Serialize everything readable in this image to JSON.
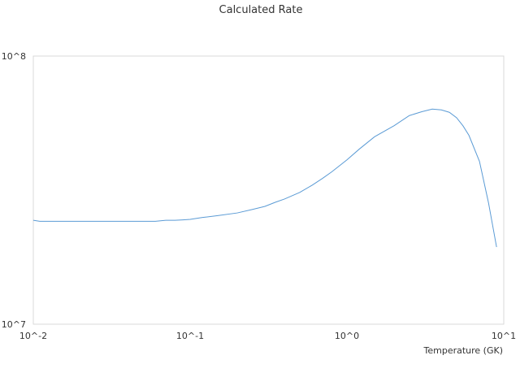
{
  "chart_data": {
    "type": "line",
    "title": "Calculated Rate",
    "xlabel": "Temperature (GK)",
    "ylabel": "",
    "xscale": "log",
    "yscale": "log",
    "xlim": [
      0.01,
      10
    ],
    "ylim": [
      10000000,
      100000000
    ],
    "x_ticks": [
      {
        "value": 0.01,
        "label": "10^-2"
      },
      {
        "value": 0.1,
        "label": "10^-1"
      },
      {
        "value": 1,
        "label": "10^0"
      },
      {
        "value": 10,
        "label": "10^1"
      }
    ],
    "y_ticks": [
      {
        "value": 10000000,
        "label": "10^7"
      },
      {
        "value": 100000000,
        "label": "10^8"
      }
    ],
    "grid": false,
    "legend": "none",
    "series_color": "#5b9bd5",
    "axis_color": "#d9d9d9",
    "series": [
      {
        "x": [
          0.01,
          0.011,
          0.013,
          0.016,
          0.02,
          0.025,
          0.03,
          0.04,
          0.05,
          0.06,
          0.07,
          0.08,
          0.09,
          0.1,
          0.12,
          0.15,
          0.2,
          0.25,
          0.3,
          0.35,
          0.4,
          0.5,
          0.6,
          0.7,
          0.8,
          1.0,
          1.2,
          1.5,
          2.0,
          2.5,
          3.0,
          3.5,
          4.0,
          4.5,
          5.0,
          5.5,
          6.0,
          7.0,
          8.0,
          9.0
        ],
        "y": [
          24400000,
          24200000,
          24200000,
          24200000,
          24200000,
          24200000,
          24200000,
          24200000,
          24200000,
          24200000,
          24400000,
          24400000,
          24500000,
          24600000,
          25000000,
          25400000,
          26000000,
          26800000,
          27500000,
          28500000,
          29300000,
          31000000,
          33000000,
          35000000,
          37000000,
          41000000,
          45000000,
          50000000,
          55000000,
          60000000,
          62000000,
          63400000,
          63000000,
          61700000,
          58900000,
          54900000,
          50600000,
          40500000,
          28300000,
          19400000
        ]
      }
    ]
  }
}
